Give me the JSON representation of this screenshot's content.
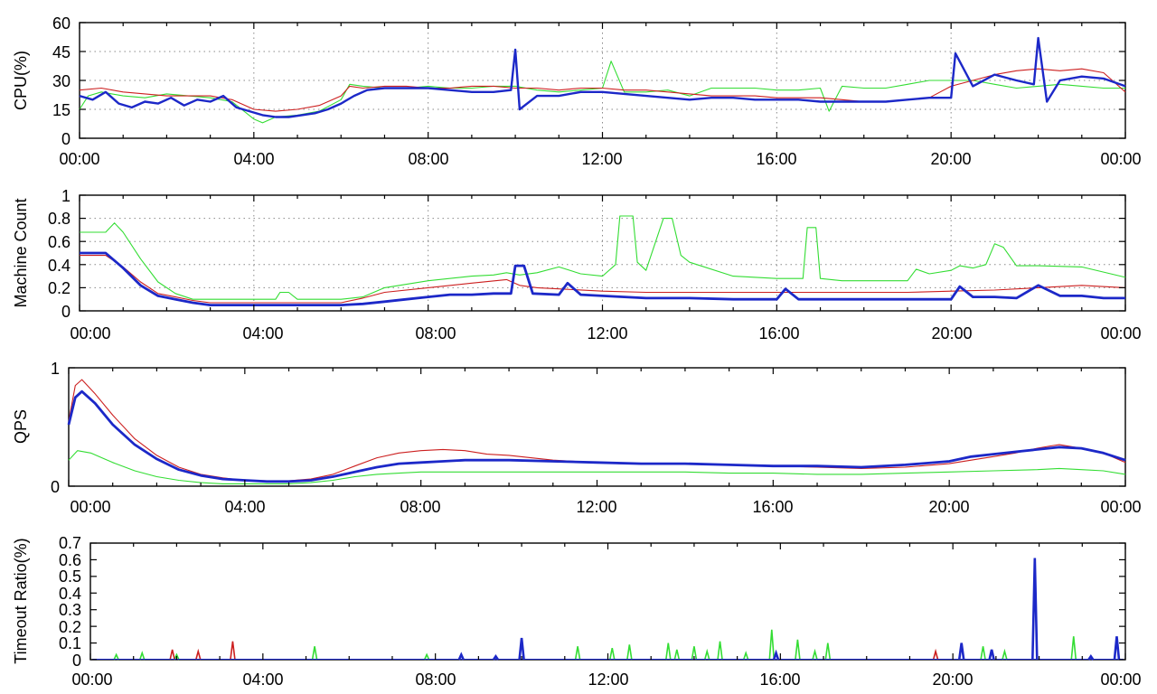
{
  "colors": {
    "red": "#cc1f1f",
    "green": "#33dd33",
    "blue": "#1c28c8"
  },
  "chart_data": [
    {
      "id": "cpu",
      "type": "line",
      "ylabel": "CPU(%)",
      "ylim": [
        0,
        60
      ],
      "yticks": [
        0,
        15,
        30,
        45,
        60
      ],
      "ytick_labels": [
        "0",
        "15",
        "30",
        "45",
        "60"
      ],
      "xlim": [
        0,
        24
      ],
      "xtick_labels": [
        "00:00",
        "04:00",
        "08:00",
        "12:00",
        "16:00",
        "20:00",
        "00:00"
      ],
      "grid": true,
      "series": [
        {
          "name": "red",
          "color": "red",
          "x": [
            0,
            0.5,
            1,
            1.5,
            2,
            2.5,
            3,
            3.5,
            4,
            4.5,
            5,
            5.5,
            6,
            6.2,
            6.5,
            7,
            7.5,
            8,
            8.5,
            9,
            9.5,
            10,
            10.5,
            11,
            11.5,
            12,
            12.5,
            13,
            13.5,
            14,
            14.5,
            15,
            15.5,
            16,
            16.5,
            17,
            17.5,
            18,
            18.5,
            19,
            19.5,
            20,
            20.5,
            21,
            21.5,
            22,
            22.5,
            23,
            23.5,
            24
          ],
          "values": [
            25,
            26,
            24,
            23,
            22,
            22,
            22,
            20,
            15,
            14,
            15,
            17,
            22,
            27,
            26,
            27,
            27,
            26,
            26,
            27,
            27,
            26,
            26,
            25,
            26,
            26,
            25,
            25,
            24,
            23,
            22,
            22,
            22,
            21,
            21,
            21,
            20,
            19,
            19,
            20,
            21,
            27,
            30,
            33,
            35,
            36,
            35,
            36,
            34,
            24
          ]
        },
        {
          "name": "green",
          "color": "green",
          "x": [
            0,
            0.2,
            0.5,
            1,
            1.5,
            2,
            2.5,
            3,
            3.5,
            4,
            4.2,
            4.5,
            5,
            5.5,
            6,
            6.2,
            6.5,
            7,
            7.5,
            8,
            8.5,
            9,
            9.5,
            10,
            10.5,
            11,
            11.5,
            12,
            12.2,
            12.5,
            13,
            13.5,
            14,
            14.5,
            15,
            15.5,
            16,
            16.5,
            17,
            17.2,
            17.5,
            18,
            18.5,
            19,
            19.5,
            20,
            20.5,
            21,
            21.5,
            22,
            22.5,
            23,
            23.5,
            24
          ],
          "values": [
            15,
            22,
            24,
            22,
            21,
            23,
            22,
            21,
            19,
            10,
            8,
            11,
            12,
            14,
            20,
            28,
            27,
            26,
            26,
            27,
            26,
            26,
            27,
            27,
            25,
            24,
            25,
            26,
            40,
            24,
            24,
            25,
            22,
            26,
            26,
            26,
            25,
            25,
            26,
            14,
            27,
            26,
            26,
            28,
            30,
            30,
            30,
            28,
            26,
            27,
            28,
            27,
            26,
            26
          ]
        },
        {
          "name": "blue",
          "color": "blue",
          "x": [
            0,
            0.3,
            0.6,
            0.9,
            1.2,
            1.5,
            1.8,
            2.1,
            2.4,
            2.7,
            3,
            3.3,
            3.6,
            3.9,
            4.2,
            4.5,
            4.8,
            5.1,
            5.4,
            5.7,
            6,
            6.3,
            6.6,
            7,
            7.5,
            8,
            8.5,
            9,
            9.5,
            9.9,
            10,
            10.1,
            10.5,
            11,
            11.5,
            12,
            12.5,
            13,
            13.5,
            14,
            14.5,
            15,
            15.5,
            16,
            16.5,
            17,
            17.5,
            18,
            18.5,
            19,
            19.5,
            20,
            20.1,
            20.5,
            21,
            21.5,
            21.9,
            22,
            22.2,
            22.5,
            23,
            23.5,
            24
          ],
          "values": [
            22,
            20,
            24,
            18,
            16,
            19,
            18,
            21,
            17,
            20,
            19,
            22,
            16,
            14,
            12,
            11,
            11,
            12,
            13,
            15,
            18,
            22,
            25,
            26,
            26,
            26,
            25,
            24,
            24,
            25,
            46,
            15,
            22,
            22,
            24,
            24,
            23,
            22,
            21,
            20,
            21,
            21,
            20,
            20,
            20,
            19,
            19,
            19,
            19,
            20,
            21,
            21,
            44,
            27,
            33,
            30,
            28,
            52,
            19,
            30,
            32,
            31,
            27
          ]
        }
      ]
    },
    {
      "id": "machine",
      "type": "line",
      "ylabel": "Machine Count",
      "ylim": [
        0,
        1
      ],
      "yticks": [
        0,
        0.2,
        0.4,
        0.6,
        0.8,
        1
      ],
      "ytick_labels": [
        "0",
        "0.2",
        "0.4",
        "0.6",
        "0.8",
        "1"
      ],
      "xlim": [
        0,
        24
      ],
      "xtick_labels": [
        "00:00",
        "04:00",
        "08:00",
        "12:00",
        "16:00",
        "20:00",
        "00:00"
      ],
      "grid": true,
      "series": [
        {
          "name": "red",
          "color": "red",
          "x": [
            0,
            0.6,
            1,
            1.4,
            1.8,
            2.2,
            2.6,
            3,
            4,
            5,
            6,
            6.5,
            7,
            8,
            9,
            9.8,
            10.1,
            10.5,
            11,
            12,
            13,
            14,
            15,
            16,
            17,
            18,
            19,
            20,
            21,
            22,
            23,
            24
          ],
          "values": [
            0.48,
            0.48,
            0.38,
            0.25,
            0.15,
            0.12,
            0.09,
            0.07,
            0.07,
            0.07,
            0.07,
            0.11,
            0.16,
            0.2,
            0.24,
            0.27,
            0.22,
            0.2,
            0.19,
            0.17,
            0.16,
            0.16,
            0.16,
            0.16,
            0.16,
            0.16,
            0.16,
            0.17,
            0.18,
            0.2,
            0.22,
            0.2
          ]
        },
        {
          "name": "green",
          "color": "green",
          "x": [
            0,
            0.6,
            0.8,
            1,
            1.4,
            1.8,
            2.2,
            2.6,
            3,
            4,
            4.5,
            4.6,
            4.8,
            5,
            6,
            6.5,
            7,
            8,
            9,
            9.5,
            9.8,
            10.1,
            10.5,
            11,
            11.5,
            12,
            12.3,
            12.4,
            12.7,
            12.8,
            13,
            13.4,
            13.6,
            13.8,
            14,
            15,
            16,
            16.6,
            16.7,
            16.9,
            17,
            17.5,
            18,
            19,
            19.2,
            19.5,
            20,
            20.2,
            20.5,
            20.8,
            21,
            21.2,
            21.5,
            22,
            23,
            24
          ],
          "values": [
            0.68,
            0.68,
            0.76,
            0.68,
            0.45,
            0.25,
            0.15,
            0.1,
            0.1,
            0.1,
            0.1,
            0.16,
            0.16,
            0.1,
            0.1,
            0.12,
            0.2,
            0.26,
            0.3,
            0.31,
            0.33,
            0.31,
            0.33,
            0.38,
            0.32,
            0.3,
            0.4,
            0.82,
            0.82,
            0.42,
            0.35,
            0.8,
            0.8,
            0.48,
            0.42,
            0.3,
            0.28,
            0.28,
            0.72,
            0.72,
            0.28,
            0.26,
            0.26,
            0.26,
            0.36,
            0.32,
            0.35,
            0.39,
            0.37,
            0.4,
            0.58,
            0.55,
            0.39,
            0.39,
            0.38,
            0.29
          ]
        },
        {
          "name": "blue",
          "color": "blue",
          "x": [
            0,
            0.6,
            1,
            1.4,
            1.8,
            2.2,
            2.6,
            3,
            4,
            5,
            6,
            6.5,
            7,
            7.5,
            8,
            8.5,
            9,
            9.5,
            9.9,
            10,
            10.2,
            10.4,
            11,
            11.2,
            11.5,
            12,
            13,
            14,
            15,
            16,
            16.2,
            16.5,
            17,
            18,
            19,
            20,
            20.2,
            20.5,
            21,
            21.5,
            22,
            22.5,
            23,
            23.5,
            24
          ],
          "values": [
            0.5,
            0.5,
            0.37,
            0.22,
            0.13,
            0.1,
            0.07,
            0.05,
            0.05,
            0.05,
            0.05,
            0.06,
            0.08,
            0.1,
            0.12,
            0.14,
            0.14,
            0.15,
            0.15,
            0.39,
            0.39,
            0.15,
            0.14,
            0.24,
            0.14,
            0.13,
            0.11,
            0.11,
            0.1,
            0.1,
            0.19,
            0.1,
            0.1,
            0.1,
            0.1,
            0.1,
            0.21,
            0.12,
            0.12,
            0.11,
            0.22,
            0.13,
            0.13,
            0.11,
            0.11
          ]
        }
      ]
    },
    {
      "id": "qps",
      "type": "line",
      "ylabel": "QPS",
      "ylim": [
        0,
        1
      ],
      "yticks": [
        0,
        1
      ],
      "ytick_labels": [
        "0",
        "1"
      ],
      "xlim": [
        0,
        24
      ],
      "xtick_labels": [
        "00:00",
        "04:00",
        "08:00",
        "12:00",
        "16:00",
        "20:00",
        "00:00"
      ],
      "grid": false,
      "series": [
        {
          "name": "red",
          "color": "red",
          "x": [
            0,
            0.15,
            0.3,
            0.6,
            1,
            1.5,
            2,
            2.5,
            3,
            3.5,
            4,
            4.5,
            5,
            5.5,
            6,
            6.5,
            7,
            7.5,
            8,
            8.5,
            9,
            9.5,
            10,
            10.5,
            11,
            11.5,
            12,
            12.5,
            13,
            14,
            15,
            16,
            17,
            18,
            19,
            20,
            20.5,
            21,
            21.5,
            22,
            22.3,
            22.5,
            23,
            23.5,
            24
          ],
          "values": [
            0.55,
            0.85,
            0.9,
            0.78,
            0.6,
            0.4,
            0.26,
            0.16,
            0.1,
            0.07,
            0.05,
            0.045,
            0.045,
            0.06,
            0.1,
            0.17,
            0.24,
            0.28,
            0.3,
            0.31,
            0.3,
            0.27,
            0.26,
            0.24,
            0.22,
            0.21,
            0.2,
            0.19,
            0.19,
            0.19,
            0.18,
            0.17,
            0.16,
            0.15,
            0.16,
            0.19,
            0.22,
            0.25,
            0.28,
            0.32,
            0.34,
            0.35,
            0.32,
            0.28,
            0.2
          ]
        },
        {
          "name": "green",
          "color": "green",
          "x": [
            0,
            0.2,
            0.5,
            1,
            1.5,
            2,
            2.5,
            3,
            3.5,
            4,
            4.5,
            5,
            5.5,
            6,
            6.5,
            7,
            7.5,
            8,
            8.5,
            9,
            10,
            11,
            12,
            13,
            14,
            15,
            16,
            17,
            18,
            19,
            20,
            21,
            22,
            22.5,
            23,
            23.5,
            24
          ],
          "values": [
            0.22,
            0.3,
            0.28,
            0.2,
            0.13,
            0.08,
            0.05,
            0.03,
            0.02,
            0.02,
            0.02,
            0.02,
            0.03,
            0.05,
            0.08,
            0.1,
            0.11,
            0.12,
            0.12,
            0.12,
            0.12,
            0.12,
            0.12,
            0.12,
            0.12,
            0.11,
            0.11,
            0.1,
            0.1,
            0.11,
            0.12,
            0.13,
            0.14,
            0.15,
            0.14,
            0.13,
            0.1
          ]
        },
        {
          "name": "blue",
          "color": "blue",
          "x": [
            0,
            0.15,
            0.3,
            0.6,
            1,
            1.5,
            2,
            2.5,
            3,
            3.5,
            4,
            4.5,
            5,
            5.5,
            6,
            6.5,
            7,
            7.5,
            8,
            8.5,
            9,
            9.5,
            10,
            11,
            12,
            13,
            14,
            15,
            16,
            17,
            18,
            19,
            20,
            20.5,
            21,
            21.5,
            22,
            22.5,
            23,
            23.5,
            24
          ],
          "values": [
            0.52,
            0.75,
            0.8,
            0.7,
            0.52,
            0.35,
            0.23,
            0.14,
            0.09,
            0.06,
            0.05,
            0.04,
            0.04,
            0.05,
            0.08,
            0.12,
            0.16,
            0.19,
            0.2,
            0.21,
            0.22,
            0.22,
            0.22,
            0.21,
            0.2,
            0.19,
            0.19,
            0.18,
            0.17,
            0.17,
            0.16,
            0.18,
            0.21,
            0.25,
            0.27,
            0.29,
            0.31,
            0.33,
            0.32,
            0.28,
            0.22
          ]
        }
      ]
    },
    {
      "id": "timeout",
      "type": "line",
      "ylabel": "Timeout Ratio(%)",
      "ylim": [
        0,
        0.7
      ],
      "yticks": [
        0,
        0.1,
        0.2,
        0.3,
        0.4,
        0.5,
        0.6,
        0.7
      ],
      "ytick_labels": [
        "0",
        "0.1",
        "0.2",
        "0.3",
        "0.4",
        "0.5",
        "0.6",
        "0.7"
      ],
      "xlim": [
        0,
        24
      ],
      "xtick_labels": [
        "00:00",
        "04:00",
        "08:00",
        "12:00",
        "16:00",
        "20:00",
        "00:00"
      ],
      "grid": false,
      "series": [
        {
          "name": "red",
          "color": "red",
          "spikes": true,
          "x": [
            1.9,
            2.5,
            3.3,
            19.6
          ],
          "values": [
            0.06,
            0.05,
            0.11,
            0.05
          ]
        },
        {
          "name": "green",
          "color": "green",
          "spikes": true,
          "x": [
            0.6,
            1.2,
            2,
            5.2,
            7.8,
            11.3,
            12.1,
            12.5,
            13.4,
            13.6,
            14,
            14.3,
            14.6,
            15.2,
            15.8,
            16.4,
            16.8,
            17.1,
            20.7,
            21.2,
            22.8
          ],
          "values": [
            0.03,
            0.04,
            0.03,
            0.08,
            0.03,
            0.08,
            0.07,
            0.09,
            0.1,
            0.06,
            0.08,
            0.05,
            0.11,
            0.04,
            0.18,
            0.12,
            0.05,
            0.1,
            0.08,
            0.05,
            0.14
          ]
        },
        {
          "name": "blue",
          "color": "blue",
          "spikes": true,
          "x": [
            8.6,
            9.4,
            10,
            15.9,
            20.2,
            20.9,
            21.9,
            23.2,
            23.8
          ],
          "values": [
            0.03,
            0.02,
            0.13,
            0.04,
            0.1,
            0.06,
            0.61,
            0.02,
            0.14
          ]
        }
      ]
    }
  ]
}
